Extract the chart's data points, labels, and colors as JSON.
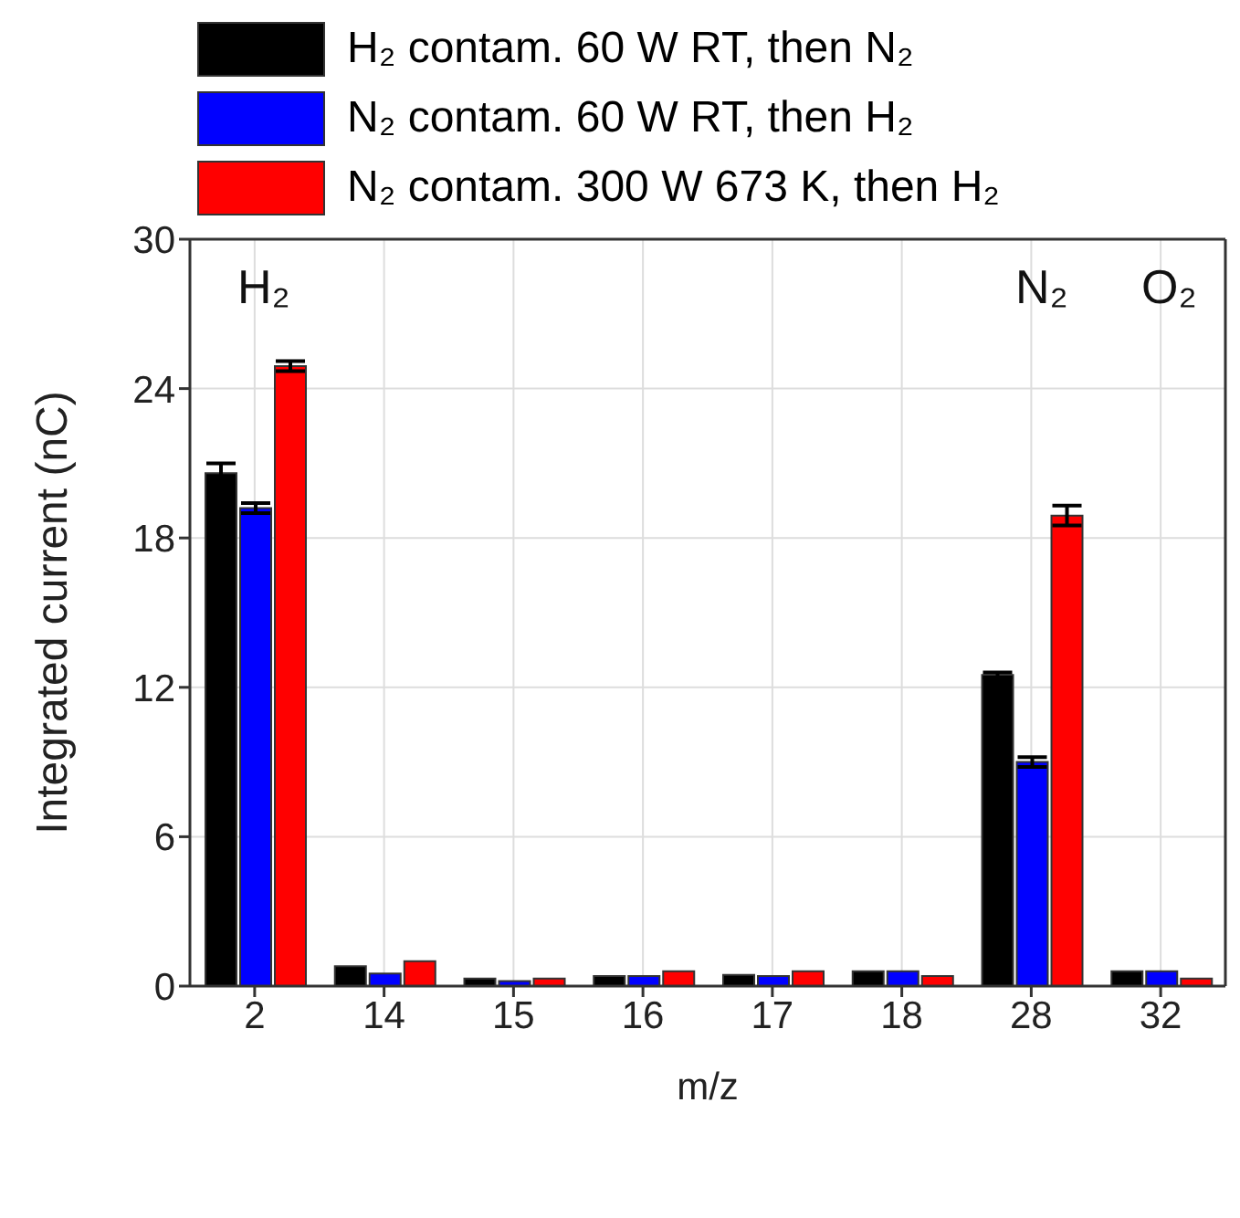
{
  "chart_data": {
    "type": "bar",
    "xlabel": "m/z",
    "ylabel": "Integrated current (nC)",
    "categories": [
      "2",
      "14",
      "15",
      "16",
      "17",
      "18",
      "28",
      "32"
    ],
    "series": [
      {
        "name": "H₂ contam. 60 W RT, then N₂",
        "color": "#000000",
        "values": [
          20.6,
          0.8,
          0.3,
          0.4,
          0.45,
          0.6,
          12.5,
          0.6
        ],
        "errors": [
          0.4,
          null,
          null,
          null,
          null,
          null,
          0.1,
          null
        ]
      },
      {
        "name": "N₂ contam. 60 W RT, then H₂",
        "color": "#0000ff",
        "values": [
          19.2,
          0.5,
          0.2,
          0.4,
          0.4,
          0.6,
          9.0,
          0.6
        ],
        "errors": [
          0.2,
          null,
          null,
          null,
          null,
          null,
          0.2,
          null
        ]
      },
      {
        "name": "N₂ contam. 300 W 673 K, then H₂",
        "color": "#ff0000",
        "values": [
          24.9,
          1.0,
          0.3,
          0.6,
          0.6,
          0.4,
          18.9,
          0.3
        ],
        "errors": [
          0.2,
          null,
          null,
          null,
          null,
          null,
          0.4,
          null
        ]
      }
    ],
    "annotations": [
      "H₂",
      "N₂",
      "O₂"
    ],
    "ylim": [
      0,
      30
    ],
    "yticks": [
      0,
      6,
      12,
      18,
      24,
      30
    ],
    "grid": true,
    "legend": "top"
  }
}
